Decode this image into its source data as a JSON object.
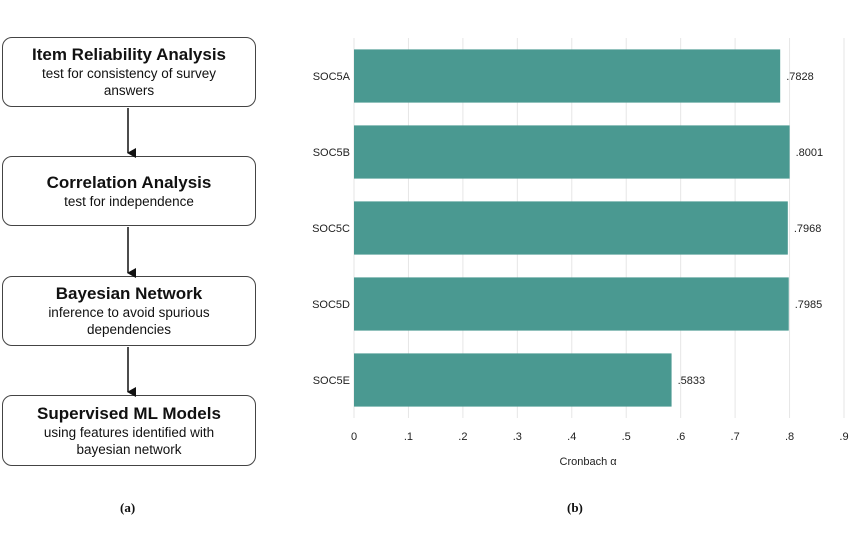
{
  "flowchart": {
    "steps": [
      {
        "title": "Item Reliability Analysis",
        "desc": [
          "test for consistency of survey",
          "answers"
        ]
      },
      {
        "title": "Correlation Analysis",
        "desc": [
          "test for independence"
        ]
      },
      {
        "title": "Bayesian Network",
        "desc": [
          "inference to avoid spurious",
          "dependencies"
        ]
      },
      {
        "title": "Supervised ML Models",
        "desc": [
          "using features identified with",
          "bayesian network"
        ]
      }
    ],
    "label": "(a)"
  },
  "chart_label": "(b)",
  "colors": {
    "bar": "#4a9991",
    "grid": "#e6e6e6",
    "arrow": "#111111"
  },
  "chart_data": {
    "type": "bar",
    "orientation": "horizontal",
    "categories": [
      "SOC5A",
      "SOC5B",
      "SOC5C",
      "SOC5D",
      "SOC5E"
    ],
    "values": [
      0.7828,
      0.8001,
      0.7968,
      0.7985,
      0.5833
    ],
    "data_labels": [
      ".7828",
      ".8001",
      ".7968",
      ".7985",
      ".5833"
    ],
    "xlabel": "Cronbach α",
    "ylabel": "",
    "xlim": [
      0,
      0.9
    ],
    "xticks": [
      0,
      0.1,
      0.2,
      0.3,
      0.4,
      0.5,
      0.6,
      0.7,
      0.8,
      0.9
    ],
    "xtick_labels": [
      "0",
      ".1",
      ".2",
      ".3",
      ".4",
      ".5",
      ".6",
      ".7",
      ".8",
      ".9"
    ],
    "grid": true
  }
}
